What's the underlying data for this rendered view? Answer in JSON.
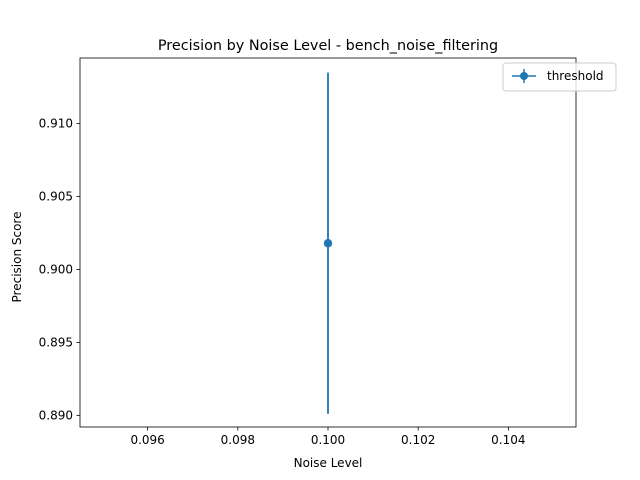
{
  "chart_data": {
    "type": "scatter",
    "title": "Precision by Noise Level - bench_noise_filtering",
    "xlabel": "Noise Level",
    "ylabel": "Precision Score",
    "xlim": [
      0.0945,
      0.1055
    ],
    "ylim": [
      0.8892,
      0.9145
    ],
    "x_ticks": [
      "0.096",
      "0.098",
      "0.100",
      "0.102",
      "0.104"
    ],
    "x_tick_values": [
      0.096,
      0.098,
      0.1,
      0.102,
      0.104
    ],
    "y_ticks": [
      "0.890",
      "0.895",
      "0.900",
      "0.905",
      "0.910"
    ],
    "y_tick_values": [
      0.89,
      0.895,
      0.9,
      0.905,
      0.91
    ],
    "grid": false,
    "legend_position": "top-right",
    "series": [
      {
        "name": "threshold",
        "color": "#1f77b4",
        "x": [
          0.1
        ],
        "y": [
          0.9018
        ],
        "yerr_low": [
          0.8901
        ],
        "yerr_high": [
          0.9135
        ]
      }
    ]
  }
}
